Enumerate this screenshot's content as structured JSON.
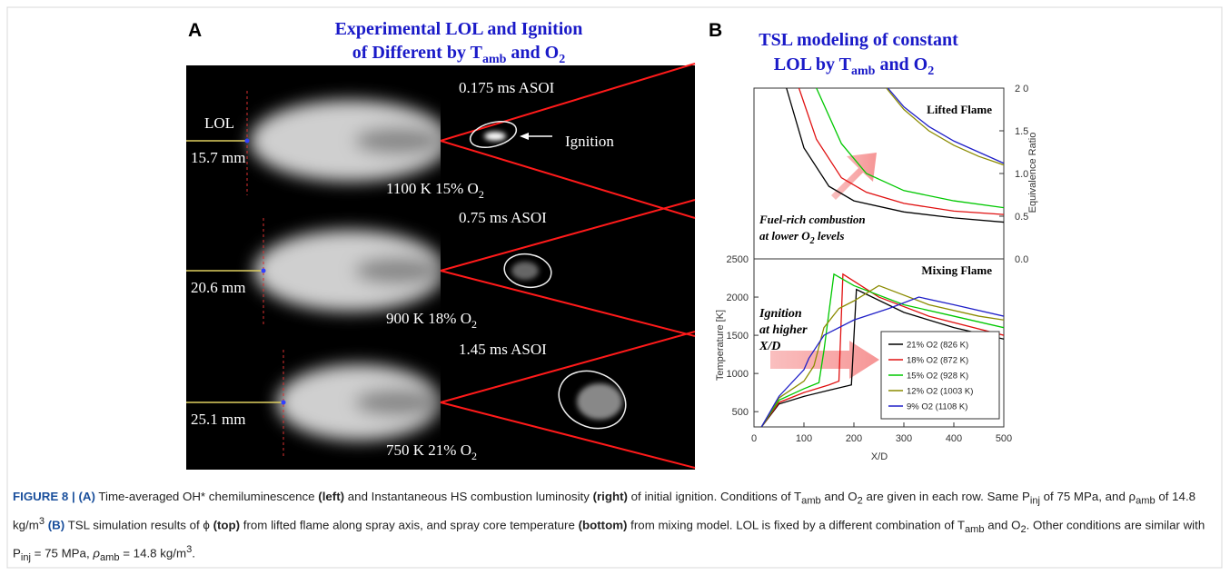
{
  "panel_a": {
    "label": "A",
    "title_line1": "Experimental LOL and Ignition",
    "title_line2": [
      "of Different by T",
      "amb",
      " and O",
      "2"
    ],
    "lol_label": "LOL",
    "ignition_label": "Ignition",
    "rows": [
      {
        "lol": "15.7 mm",
        "time": "0.175 ms ASOI",
        "condition": [
          "1100 K 15% O",
          "2"
        ]
      },
      {
        "lol": "20.6 mm",
        "time": "0.75 ms ASOI",
        "condition": [
          "900 K 18% O",
          "2"
        ]
      },
      {
        "lol": "25.1 mm",
        "time": "1.45 ms ASOI",
        "condition": [
          "750 K 21% O",
          "2"
        ]
      }
    ]
  },
  "panel_b": {
    "label": "B",
    "title_line1": "TSL modeling of constant",
    "title_line2": [
      "LOL by T",
      "amb",
      " and O",
      "2"
    ]
  },
  "chart_data": [
    {
      "type": "line",
      "title": "Lifted Flame",
      "ylabel": "Equivalence Ratio",
      "annotation": [
        "Fuel-rich combustion",
        "at lower O",
        "2",
        " levels"
      ],
      "y_axis_side": "right",
      "xlim": [
        0,
        500
      ],
      "ylim": [
        0,
        2
      ],
      "yticks": [
        {
          "value": 0,
          "label": "0.0"
        },
        {
          "value": 0.5,
          "label": "0.5"
        },
        {
          "value": 1,
          "label": "1.0"
        },
        {
          "value": 1.5,
          "label": "1.5"
        },
        {
          "value": 2,
          "label": "2 0"
        }
      ],
      "series": [
        {
          "color": "#000000",
          "x": [
            65,
            100,
            150,
            200,
            300,
            400,
            500
          ],
          "values": [
            2.0,
            1.3,
            0.85,
            0.68,
            0.55,
            0.48,
            0.43
          ]
        },
        {
          "color": "#e01010",
          "x": [
            90,
            125,
            175,
            225,
            300,
            400,
            500
          ],
          "values": [
            2.0,
            1.4,
            0.95,
            0.78,
            0.65,
            0.56,
            0.52
          ]
        },
        {
          "color": "#00c800",
          "x": [
            125,
            175,
            225,
            300,
            400,
            500
          ],
          "values": [
            2.0,
            1.35,
            1.0,
            0.8,
            0.68,
            0.6
          ]
        },
        {
          "color": "#8b8b00",
          "x": [
            265,
            300,
            350,
            400,
            450,
            500
          ],
          "values": [
            2.0,
            1.75,
            1.5,
            1.33,
            1.2,
            1.1
          ]
        },
        {
          "color": "#2020c8",
          "x": [
            268,
            300,
            350,
            400,
            450,
            500
          ],
          "values": [
            2.0,
            1.78,
            1.55,
            1.38,
            1.25,
            1.12
          ]
        }
      ]
    },
    {
      "type": "line",
      "title": "Mixing Flame",
      "xlabel": "X/D",
      "ylabel": "Temperature [K]",
      "annotation": [
        "Ignition",
        "at higher",
        "X/D"
      ],
      "y_axis_side": "left",
      "xlim": [
        0,
        500
      ],
      "xticks": [
        0,
        100,
        200,
        300,
        400,
        500
      ],
      "ylim": [
        300,
        2500
      ],
      "yticks": [
        500,
        1000,
        1500,
        2000,
        2500
      ],
      "series": [
        {
          "name": "21% O2 (826 K)",
          "color": "#000000",
          "x": [
            15,
            50,
            100,
            150,
            195,
            205,
            300,
            400,
            500
          ],
          "values": [
            300,
            600,
            700,
            780,
            850,
            2100,
            1800,
            1600,
            1450
          ]
        },
        {
          "name": "18% O2 (872 K)",
          "color": "#e01010",
          "x": [
            15,
            50,
            100,
            150,
            170,
            178,
            250,
            350,
            500
          ],
          "values": [
            300,
            620,
            750,
            850,
            900,
            2300,
            2000,
            1750,
            1500
          ]
        },
        {
          "name": "15% O2 (928 K)",
          "color": "#00c800",
          "x": [
            15,
            50,
            100,
            130,
            140,
            150,
            160,
            200,
            300,
            400,
            500
          ],
          "values": [
            300,
            650,
            800,
            880,
            1300,
            1800,
            2300,
            2150,
            1900,
            1750,
            1600
          ]
        },
        {
          "name": "12% O2 (1003 K)",
          "color": "#8b8b00",
          "x": [
            15,
            50,
            100,
            120,
            140,
            170,
            200,
            250,
            350,
            450,
            500
          ],
          "values": [
            300,
            680,
            900,
            1100,
            1600,
            1850,
            1950,
            2150,
            1900,
            1750,
            1700
          ]
        },
        {
          "name": "9% O2 (1108 K)",
          "color": "#2020c8",
          "x": [
            15,
            50,
            100,
            110,
            140,
            200,
            270,
            330,
            400,
            500
          ],
          "values": [
            300,
            700,
            1050,
            1200,
            1500,
            1700,
            1850,
            2000,
            1900,
            1750
          ]
        }
      ]
    }
  ],
  "caption": [
    "FIGURE 8 | ",
    "(A)",
    " Time-averaged OH* chemiluminescence ",
    "(left)",
    " and Instantaneous HS combustion luminosity ",
    "(right)",
    " of initial ignition. Conditions of T",
    "amb",
    " and O",
    "2",
    " are given in each row. Same P",
    "inj",
    " of 75 MPa, and ρ",
    "amb",
    " of 14.8 kg/m",
    "3",
    " ",
    "(B)",
    " TSL simulation results of ϕ ",
    "(top)",
    " from lifted flame along spray axis, and spray core temperature ",
    "(bottom)",
    " from mixing model. LOL is fixed by a different combination of T",
    "amb",
    " and O",
    "2",
    ". Other conditions are similar with P",
    "inj",
    " = 75 MPa, ",
    "ρ",
    "amb",
    " = 14.8 kg/m",
    "3",
    "."
  ]
}
